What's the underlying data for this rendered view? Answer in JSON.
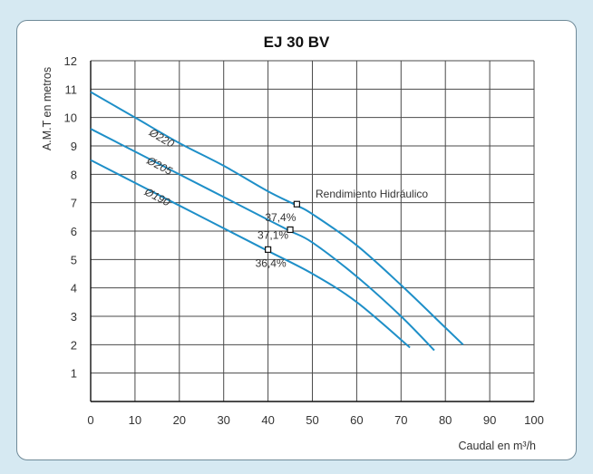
{
  "chart_data": {
    "type": "line",
    "title": "EJ 30 BV",
    "xlabel": "Caudal en m³/h",
    "ylabel": "A.M.T en metros",
    "xlim": [
      0,
      100
    ],
    "ylim": [
      0,
      12
    ],
    "xticks": [
      0,
      10,
      20,
      30,
      40,
      50,
      60,
      70,
      80,
      90,
      100
    ],
    "yticks": [
      1,
      2,
      3,
      4,
      5,
      6,
      7,
      8,
      9,
      10,
      11,
      12
    ],
    "grid": true,
    "series_color": "#1e8fc8",
    "series": [
      {
        "name": "Ø220",
        "points": [
          [
            0,
            10.9
          ],
          [
            10,
            10.0
          ],
          [
            20,
            9.1
          ],
          [
            30,
            8.3
          ],
          [
            40,
            7.4
          ],
          [
            46.5,
            6.9
          ],
          [
            50,
            6.6
          ],
          [
            60,
            5.5
          ],
          [
            70,
            4.1
          ],
          [
            80,
            2.6
          ],
          [
            84,
            2.0
          ]
        ]
      },
      {
        "name": "Ø205",
        "points": [
          [
            0,
            9.6
          ],
          [
            10,
            8.8
          ],
          [
            20,
            8.0
          ],
          [
            30,
            7.2
          ],
          [
            40,
            6.4
          ],
          [
            45,
            6.0
          ],
          [
            50,
            5.6
          ],
          [
            60,
            4.4
          ],
          [
            70,
            3.0
          ],
          [
            77.5,
            1.8
          ]
        ]
      },
      {
        "name": "Ø190",
        "points": [
          [
            0,
            8.5
          ],
          [
            10,
            7.7
          ],
          [
            20,
            6.9
          ],
          [
            30,
            6.1
          ],
          [
            40,
            5.3
          ],
          [
            50,
            4.5
          ],
          [
            60,
            3.5
          ],
          [
            72,
            1.9
          ]
        ]
      }
    ],
    "efficiency_label": "Rendimiento Hidráulico",
    "efficiency_points": [
      {
        "x": 46.5,
        "y": 6.95,
        "label": "37,4%"
      },
      {
        "x": 45,
        "y": 6.05,
        "label": "37,1%"
      },
      {
        "x": 40,
        "y": 5.35,
        "label": "36,4%"
      }
    ]
  }
}
